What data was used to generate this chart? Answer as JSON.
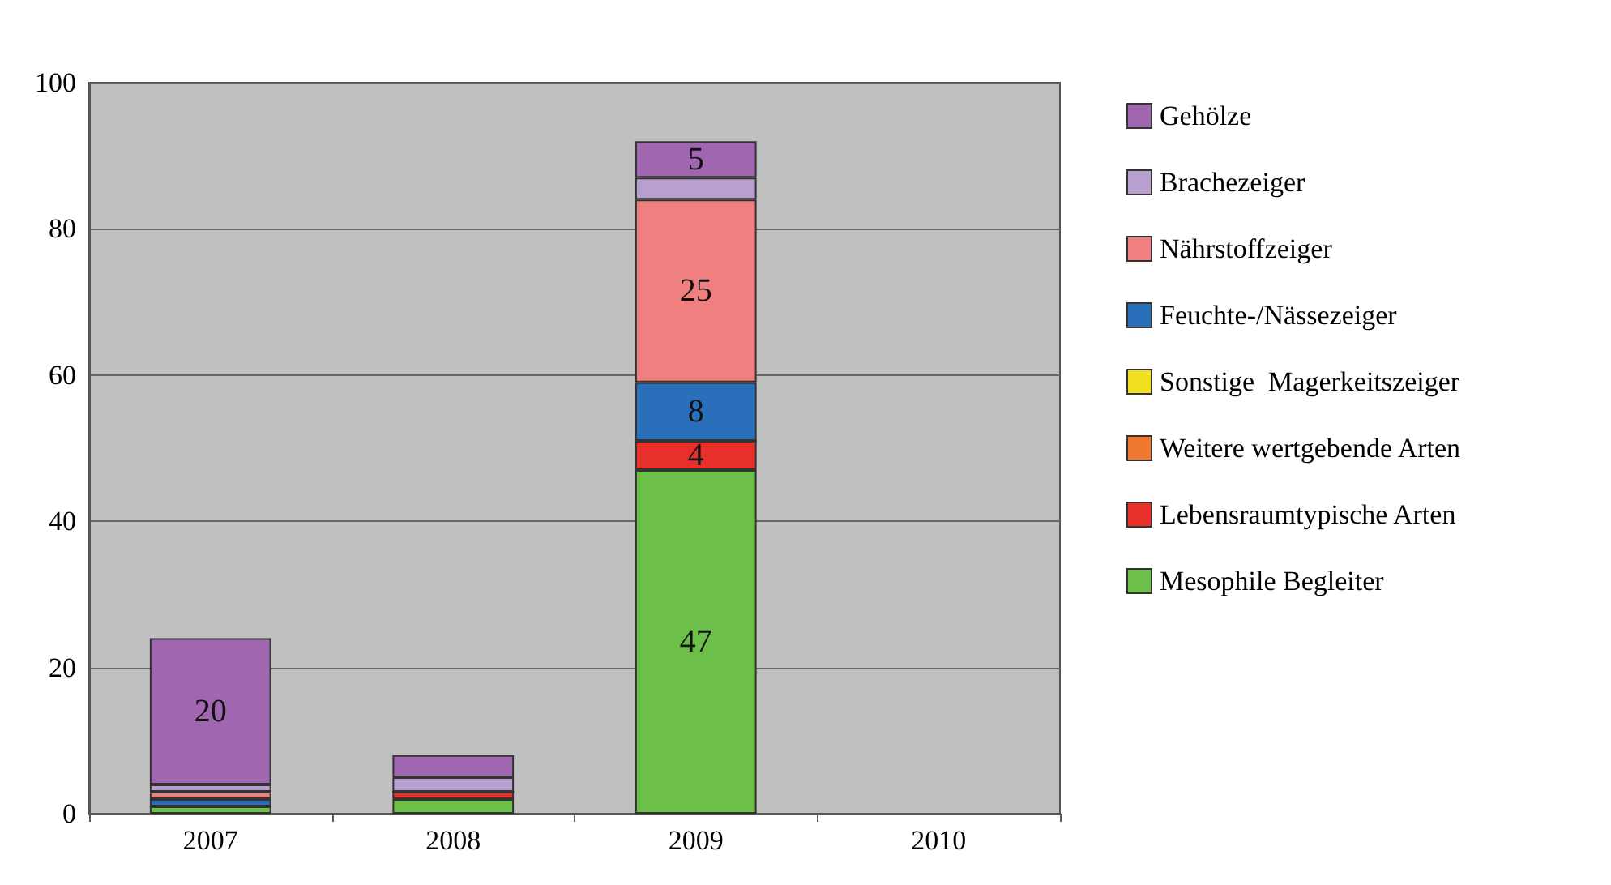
{
  "chart_data": {
    "type": "bar",
    "stacked": true,
    "categories": [
      "2007",
      "2008",
      "2009",
      "2010"
    ],
    "series": [
      {
        "name": "Mesophile Begleiter",
        "color": "#6cc04a",
        "values": [
          1,
          2,
          47,
          null
        ],
        "value_labels": [
          null,
          null,
          "47",
          null
        ]
      },
      {
        "name": "Lebensraumtypische Arten",
        "color": "#e8302a",
        "values": [
          0,
          1,
          4,
          null
        ],
        "value_labels": [
          null,
          null,
          "4",
          null
        ]
      },
      {
        "name": "Weitere wertgebende Arten",
        "color": "#f07830",
        "values": [
          0,
          0,
          0,
          null
        ]
      },
      {
        "name": "Sonstige  Magerkeitszeiger",
        "color": "#f0e020",
        "values": [
          0,
          0,
          0,
          null
        ]
      },
      {
        "name": "Feuchte-/Nässezeiger",
        "color": "#2a6fba",
        "values": [
          1,
          0,
          8,
          null
        ],
        "value_labels": [
          null,
          null,
          "8",
          null
        ]
      },
      {
        "name": "Nährstoffzeiger",
        "color": "#f08080",
        "values": [
          1,
          0,
          25,
          null
        ],
        "value_labels": [
          null,
          null,
          "25",
          null
        ]
      },
      {
        "name": "Brachezeiger",
        "color": "#b79fd0",
        "values": [
          1,
          2,
          3,
          null
        ]
      },
      {
        "name": "Gehölze",
        "color": "#a066b0",
        "values": [
          20,
          3,
          5,
          null
        ],
        "value_labels": [
          "20",
          null,
          "5",
          null
        ]
      }
    ],
    "ylim": [
      0,
      100
    ],
    "yticks": [
      0,
      20,
      40,
      60,
      80,
      100
    ],
    "grid": "y",
    "legend": "right"
  }
}
